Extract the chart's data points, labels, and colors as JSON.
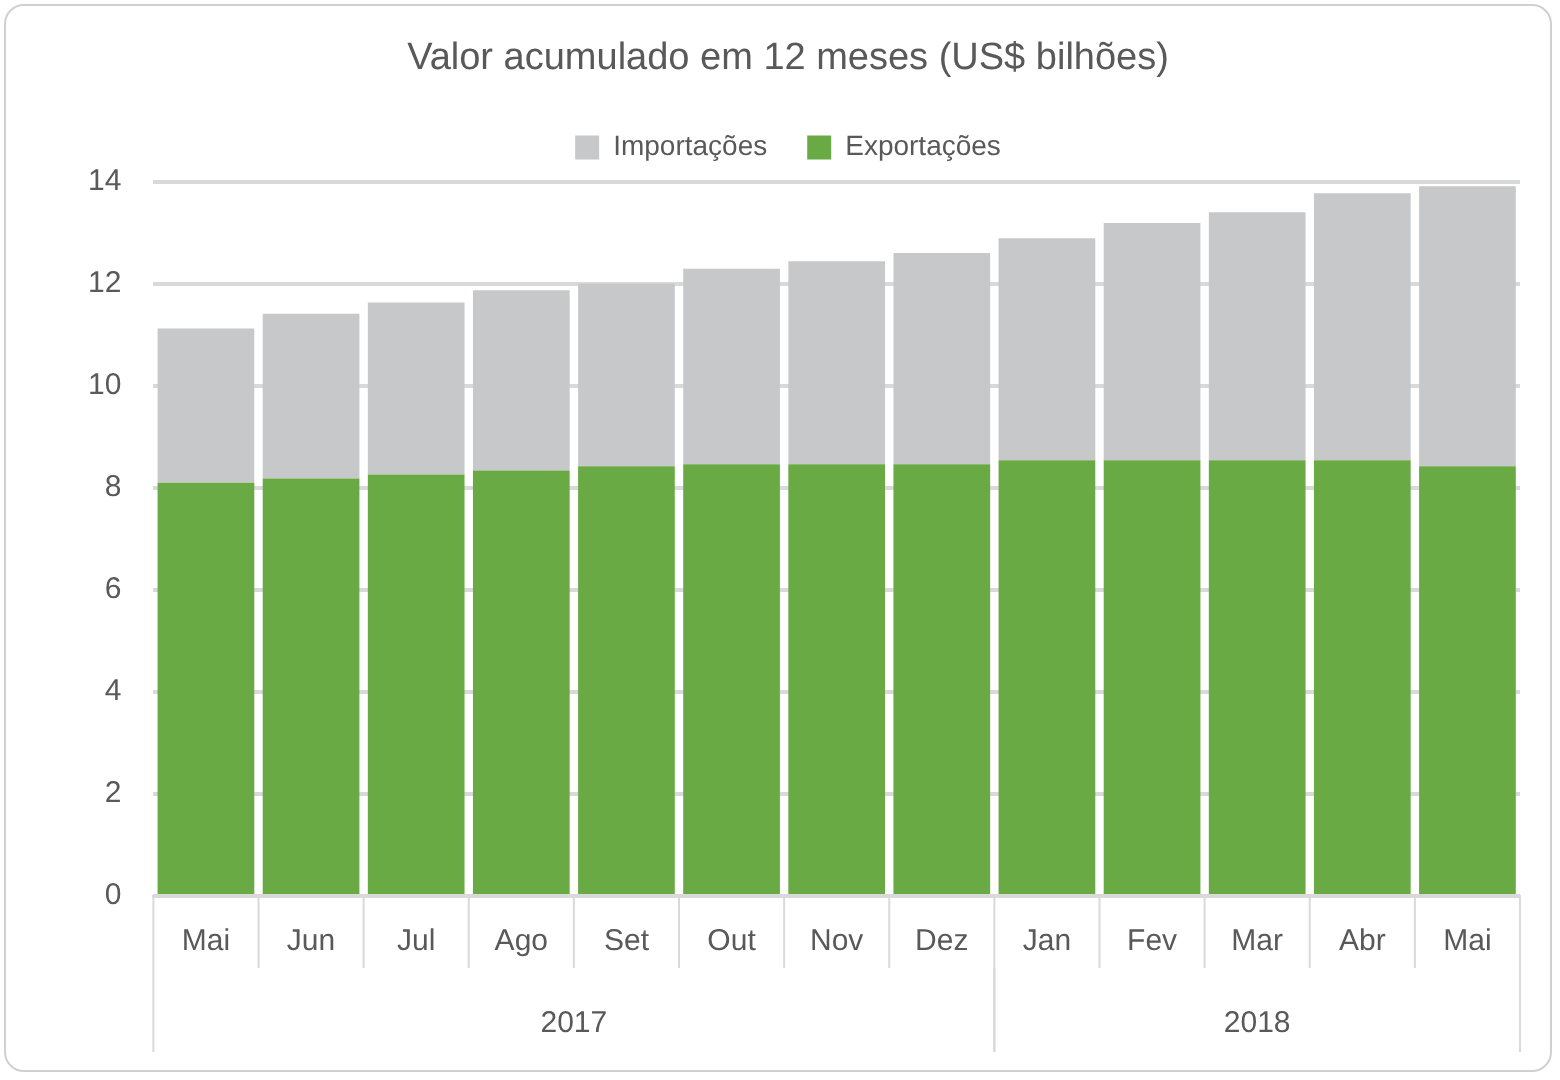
{
  "chart_data": {
    "type": "bar",
    "title": "Valor acumulado em 12 meses (US$ bilhões)",
    "categories": [
      "Mai",
      "Jun",
      "Jul",
      "Ago",
      "Set",
      "Out",
      "Nov",
      "Dez",
      "Jan",
      "Fev",
      "Mar",
      "Abr",
      "Mai"
    ],
    "series": [
      {
        "name": "Exportações",
        "color": "#6aaa45",
        "values": [
          8.1,
          8.18,
          8.26,
          8.34,
          8.42,
          8.46,
          8.46,
          8.46,
          8.54,
          8.54,
          8.54,
          8.54,
          8.42
        ]
      },
      {
        "name": "Importações",
        "color": "#c7c8ca",
        "values": [
          3.02,
          3.23,
          3.37,
          3.53,
          3.58,
          3.83,
          3.98,
          4.14,
          4.35,
          4.65,
          4.86,
          5.23,
          5.49
        ]
      }
    ],
    "stacked": true,
    "ylim": [
      0,
      14
    ],
    "yticks": [
      0,
      2,
      4,
      6,
      8,
      10,
      12,
      14
    ],
    "grid": "y",
    "legend": "top",
    "annotations": [
      "2017",
      "2018"
    ]
  }
}
